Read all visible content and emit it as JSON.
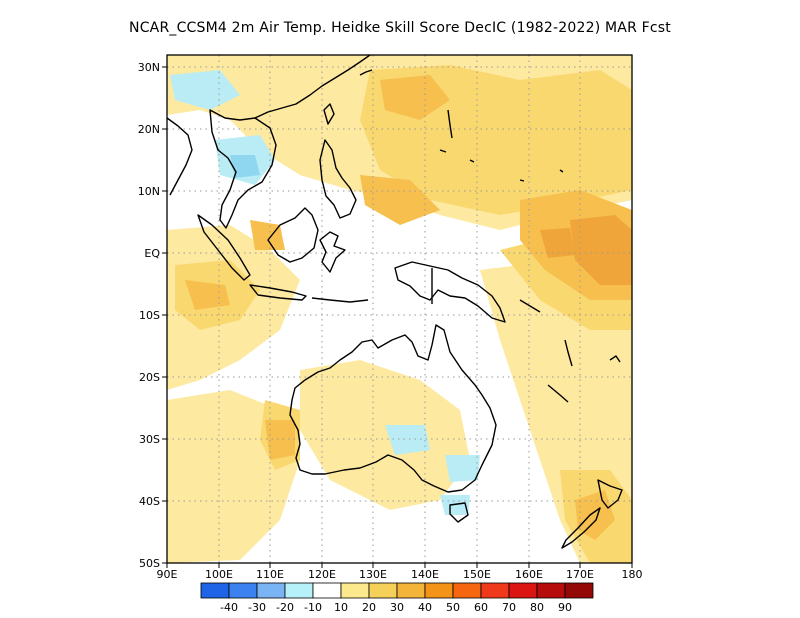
{
  "title": "NCAR_CCSM4  2m Air Temp. Heidke Skill Score DecIC (1982-2022) MAR Fcst",
  "map": {
    "lon_labels": [
      "90E",
      "100E",
      "110E",
      "120E",
      "130E",
      "140E",
      "150E",
      "160E",
      "170E",
      "180"
    ],
    "lat_labels": [
      "30N",
      "20N",
      "10N",
      "EQ",
      "10S",
      "20S",
      "30S",
      "40S",
      "50S"
    ],
    "lon_range": [
      90,
      180
    ],
    "lat_range": [
      -50,
      32
    ],
    "grid": "dotted",
    "field_colors": {
      "pos10": "#fde9a0",
      "pos20": "#f9d870",
      "pos30": "#f6bf4e",
      "pos40": "#f0a53a",
      "neg10": "#b9ecf4",
      "neg20": "#8fd6f0"
    }
  },
  "colorbar": {
    "labels": [
      "-40",
      "-30",
      "-20",
      "-10",
      "10",
      "20",
      "30",
      "40",
      "50",
      "60",
      "70",
      "80",
      "90"
    ],
    "colors": [
      "#1f63e6",
      "#3b82f0",
      "#7bb4f5",
      "#b6f0f8",
      "#ffffff",
      "#fce98e",
      "#f6d15a",
      "#f4b43a",
      "#f39419",
      "#f5660f",
      "#f0381b",
      "#db1511",
      "#b60c0c",
      "#950808"
    ]
  }
}
